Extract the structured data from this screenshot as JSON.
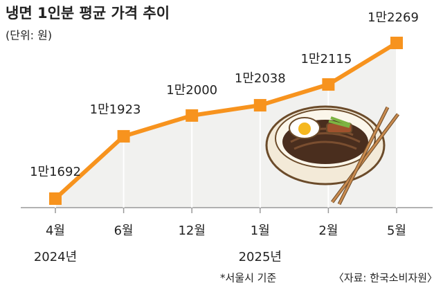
{
  "chart_data": {
    "type": "line",
    "title": "냉면 1인분 평균 가격 추이",
    "subtitle": "(단위: 원)",
    "categories": [
      "4월",
      "6월",
      "12월",
      "1월",
      "2월",
      "5월"
    ],
    "year_labels": [
      "2024년",
      null,
      null,
      "2025년",
      null,
      null
    ],
    "values": [
      11692,
      11923,
      12000,
      12038,
      12115,
      12269
    ],
    "value_labels": [
      "1만1692",
      "1만1923",
      "1만2000",
      "1만2038",
      "1만2115",
      "1만2269"
    ],
    "color": "#f7931e",
    "footnote": "*서울시 기준",
    "source": "〈자료: 한국소비자원〉"
  }
}
